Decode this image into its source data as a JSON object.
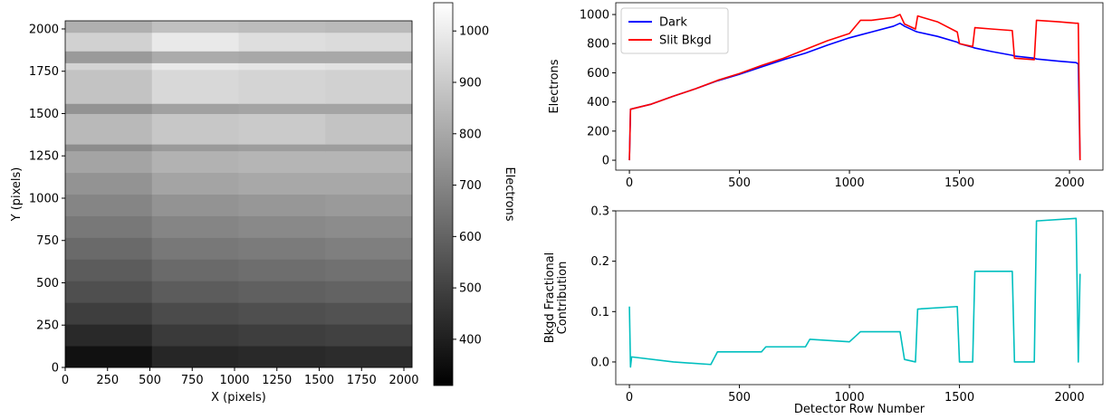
{
  "chart_data": [
    {
      "type": "heatmap",
      "x_label": "X (pixels)",
      "y_label": "Y (pixels)",
      "colorbar_label": "Electrons",
      "colormap": "gray",
      "xlim": [
        0,
        2048
      ],
      "ylim": [
        0,
        2048
      ],
      "xticks": [
        0,
        250,
        500,
        750,
        1000,
        1250,
        1500,
        1750,
        2000
      ],
      "yticks": [
        0,
        250,
        500,
        750,
        1000,
        1250,
        1500,
        1750,
        2000
      ],
      "clim": [
        310,
        1055
      ],
      "cticks": [
        400,
        500,
        600,
        700,
        800,
        900,
        1000
      ],
      "x_bins": [
        0,
        512,
        1024,
        1536,
        2048
      ],
      "y_bins": [
        0,
        128,
        256,
        384,
        512,
        640,
        768,
        896,
        1024,
        1152,
        1280,
        1320,
        1500,
        1560,
        1760,
        1800,
        1870,
        1980,
        2048
      ],
      "z": [
        [
          360,
          420,
          430,
          440
        ],
        [
          430,
          480,
          490,
          500
        ],
        [
          490,
          530,
          540,
          550
        ],
        [
          540,
          580,
          590,
          600
        ],
        [
          580,
          620,
          630,
          640
        ],
        [
          620,
          660,
          670,
          680
        ],
        [
          660,
          700,
          710,
          720
        ],
        [
          700,
          740,
          750,
          760
        ],
        [
          740,
          790,
          800,
          800
        ],
        [
          790,
          830,
          840,
          840
        ],
        [
          720,
          760,
          770,
          770
        ],
        [
          850,
          890,
          900,
          880
        ],
        [
          740,
          780,
          790,
          790
        ],
        [
          880,
          940,
          930,
          920
        ],
        [
          930,
          990,
          980,
          970
        ],
        [
          760,
          810,
          800,
          800
        ],
        [
          920,
          990,
          960,
          950
        ],
        [
          820,
          870,
          860,
          850
        ]
      ]
    },
    {
      "type": "line",
      "y_label": "Electrons",
      "legend": "upper left",
      "xlim": [
        -62,
        2152
      ],
      "ylim": [
        -68,
        1081
      ],
      "xticks": [
        0,
        500,
        1000,
        1500,
        2000
      ],
      "yticks": [
        0,
        200,
        400,
        600,
        800,
        1000
      ],
      "x": [
        0,
        5,
        100,
        200,
        300,
        400,
        500,
        600,
        700,
        800,
        900,
        1000,
        1050,
        1100,
        1200,
        1230,
        1250,
        1300,
        1310,
        1400,
        1490,
        1500,
        1560,
        1570,
        1650,
        1740,
        1750,
        1840,
        1850,
        1950,
        2030,
        2040,
        2048
      ],
      "series": [
        {
          "name": "Dark",
          "color": "#0000ff",
          "values": [
            0,
            350,
            385,
            440,
            490,
            545,
            590,
            640,
            690,
            735,
            790,
            840,
            860,
            880,
            920,
            940,
            920,
            885,
            880,
            850,
            810,
            800,
            775,
            770,
            745,
            720,
            715,
            700,
            695,
            680,
            670,
            660,
            0
          ]
        },
        {
          "name": "Slit Bkgd",
          "color": "#ff0000",
          "values": [
            0,
            350,
            385,
            440,
            490,
            548,
            595,
            650,
            700,
            760,
            820,
            870,
            960,
            960,
            980,
            1000,
            935,
            900,
            990,
            950,
            880,
            800,
            780,
            910,
            900,
            890,
            700,
            690,
            960,
            950,
            940,
            940,
            0
          ]
        }
      ]
    },
    {
      "type": "line",
      "x_label": "Detector Row Number",
      "y_label": [
        "Bkgd Fractional",
        "Contribution"
      ],
      "xlim": [
        -62,
        2152
      ],
      "ylim": [
        -0.045,
        0.3
      ],
      "xticks": [
        0,
        500,
        1000,
        1500,
        2000
      ],
      "yticks": [
        {
          "value": 0,
          "label": "0.0"
        },
        0.1,
        0.2,
        0.3
      ],
      "x": [
        0,
        5,
        10,
        200,
        370,
        400,
        600,
        620,
        800,
        820,
        1000,
        1050,
        1230,
        1250,
        1300,
        1310,
        1490,
        1500,
        1560,
        1570,
        1740,
        1750,
        1840,
        1850,
        2030,
        2040,
        2048
      ],
      "series": [
        {
          "color": "#00bfbf",
          "values": [
            0.11,
            -0.01,
            0.01,
            0.0,
            -0.005,
            0.02,
            0.02,
            0.03,
            0.03,
            0.045,
            0.04,
            0.06,
            0.06,
            0.005,
            0.0,
            0.105,
            0.11,
            0.0,
            0.0,
            0.18,
            0.18,
            0.0,
            0.0,
            0.28,
            0.285,
            0.0,
            0.175
          ]
        }
      ]
    }
  ]
}
